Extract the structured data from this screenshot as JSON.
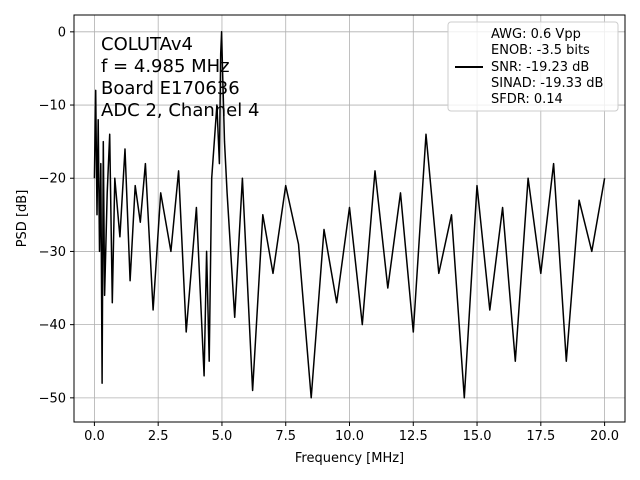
{
  "chart_data": {
    "type": "line",
    "xlabel": "Frequency [MHz]",
    "ylabel": "PSD [dB]",
    "xlim": [
      -0.8,
      20.8
    ],
    "ylim": [
      -53.3,
      2.3
    ],
    "xticks": [
      0.0,
      2.5,
      5.0,
      7.5,
      10.0,
      12.5,
      15.0,
      17.5,
      20.0
    ],
    "xtick_labels": [
      "0.0",
      "2.5",
      "5.0",
      "7.5",
      "10.0",
      "12.5",
      "15.0",
      "17.5",
      "20.0"
    ],
    "yticks": [
      0,
      -10,
      -20,
      -30,
      -40,
      -50
    ],
    "ytick_labels": [
      "0",
      "−10",
      "−20",
      "−30",
      "−40",
      "−50"
    ],
    "grid": true,
    "annotation_lines": [
      "COLUTAv4",
      "f = 4.985 MHz",
      "Board E170636",
      "ADC 2, Channel 4"
    ],
    "legend_position": "top-right",
    "legend_lines": [
      "AWG: 0.6 Vpp",
      "ENOB: -3.5 bits",
      "SNR: -19.23 dB",
      "SINAD: -19.33 dB",
      "SFDR: 0.14"
    ],
    "series": [
      {
        "color": "#000000",
        "x": [
          0.0,
          0.05,
          0.1,
          0.15,
          0.2,
          0.25,
          0.3,
          0.35,
          0.4,
          0.5,
          0.6,
          0.7,
          0.8,
          1.0,
          1.2,
          1.4,
          1.6,
          1.8,
          2.0,
          2.3,
          2.6,
          3.0,
          3.3,
          3.6,
          4.0,
          4.3,
          4.4,
          4.5,
          4.6,
          4.8,
          4.9,
          4.95,
          4.985,
          5.02,
          5.1,
          5.2,
          5.5,
          5.8,
          6.2,
          6.6,
          7.0,
          7.5,
          8.0,
          8.5,
          9.0,
          9.5,
          10.0,
          10.5,
          11.0,
          11.5,
          12.0,
          12.5,
          13.0,
          13.5,
          14.0,
          14.5,
          15.0,
          15.5,
          16.0,
          16.5,
          17.0,
          17.5,
          18.0,
          18.5,
          19.0,
          19.5,
          20.0
        ],
        "y": [
          -20,
          -8,
          -25,
          -12,
          -30,
          -18,
          -48,
          -15,
          -36,
          -22,
          -14,
          -37,
          -20,
          -28,
          -16,
          -34,
          -21,
          -26,
          -18,
          -38,
          -22,
          -30,
          -19,
          -41,
          -24,
          -47,
          -30,
          -45,
          -20,
          -10,
          -18,
          -3,
          0,
          -5,
          -15,
          -22,
          -39,
          -20,
          -49,
          -25,
          -33,
          -21,
          -29,
          -50,
          -27,
          -37,
          -24,
          -40,
          -19,
          -35,
          -22,
          -41,
          -14,
          -33,
          -25,
          -50,
          -21,
          -38,
          -24,
          -45,
          -20,
          -33,
          -18,
          -45,
          -23,
          -30,
          -20
        ]
      }
    ]
  }
}
